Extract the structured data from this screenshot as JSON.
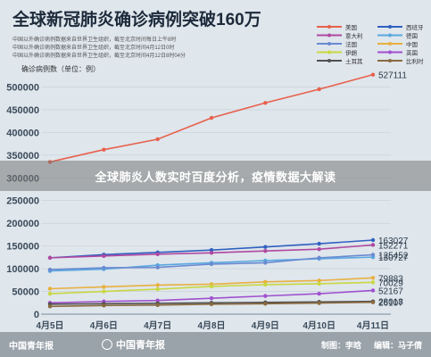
{
  "chart_data": {
    "type": "line",
    "title": "全球新冠肺炎确诊病例突破160万",
    "notes": [
      "中国以外确诊病例数据来自世界卫生组织，截至北京时间每日上午8时",
      "中国以外确诊病例数据来自世界卫生组织，截至北京时间4月12日0时",
      "中国以外确诊病例数据来自世界卫生组织，截至北京时间4月12日8时04分"
    ],
    "ylabel": "确诊病例数（单位：例）",
    "categories": [
      "4月5日",
      "4月6日",
      "4月7日",
      "4月8日",
      "4月9日",
      "4月10日",
      "4月11日"
    ],
    "ylim": [
      0,
      550000
    ],
    "yticks": [
      0,
      50000,
      100000,
      150000,
      200000,
      250000,
      300000,
      350000,
      400000,
      450000,
      500000
    ],
    "series": [
      {
        "name": "美国",
        "color": "#e8604c",
        "values": [
          335000,
          362000,
          385000,
          432000,
          465000,
          495000,
          527111
        ]
      },
      {
        "name": "西班牙",
        "color": "#3060c0",
        "values": [
          124000,
          131000,
          136000,
          141000,
          148000,
          155000,
          163027
        ]
      },
      {
        "name": "意大利",
        "color": "#b048a0",
        "values": [
          124000,
          128000,
          132000,
          135000,
          139000,
          143000,
          152271
        ]
      },
      {
        "name": "德国",
        "color": "#5aa8e0",
        "values": [
          95000,
          99000,
          108000,
          113000,
          118000,
          122000,
          125452
        ]
      },
      {
        "name": "法国",
        "color": "#6a8ad0",
        "values": [
          98000,
          102000,
          103000,
          110000,
          113000,
          124000,
          130727
        ]
      },
      {
        "name": "中国",
        "color": "#e8b040",
        "values": [
          56000,
          60000,
          64000,
          66000,
          71000,
          74000,
          79883
        ]
      },
      {
        "name": "伊朗",
        "color": "#c8d840",
        "values": [
          45000,
          50000,
          55000,
          61000,
          65000,
          67000,
          70029
        ]
      },
      {
        "name": "英国",
        "color": "#a050d0",
        "values": [
          25000,
          28000,
          30000,
          35000,
          40000,
          45000,
          52167
        ]
      },
      {
        "name": "土耳其",
        "color": "#505050",
        "values": [
          22000,
          23000,
          24000,
          25000,
          26000,
          27000,
          28018
        ]
      },
      {
        "name": "比利时",
        "color": "#8a6a40",
        "values": [
          17000,
          19000,
          20000,
          22000,
          23000,
          24500,
          26107
        ]
      }
    ],
    "end_labels": [
      "527111",
      "163027",
      "152271",
      "130727",
      "125452",
      "79883",
      "70029",
      "52167",
      "28018",
      "26107"
    ]
  },
  "banner": {
    "text": "全球肺炎人数实时百度分析，疫情数据大解读"
  },
  "footer": {
    "logo_left": "中国青年报",
    "logo_center": "中国青年报",
    "producer_label": "制图：",
    "producer": "李晗",
    "editor_label": "编辑：",
    "editor": "马子倩"
  }
}
